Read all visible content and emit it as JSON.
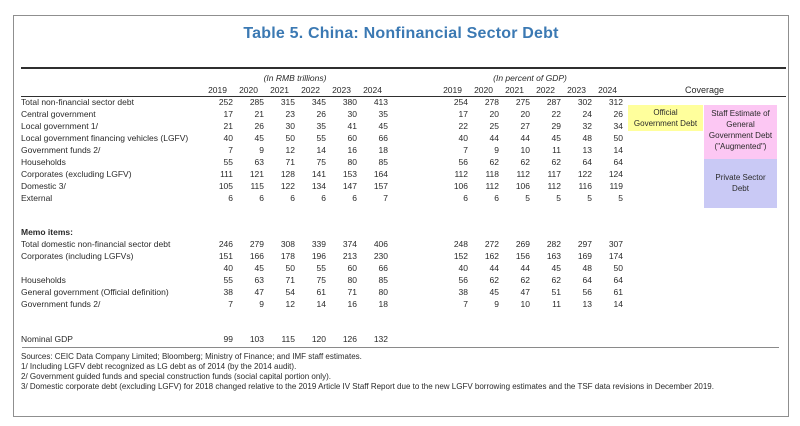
{
  "title": "Table 5. China: Nonfinancial Sector Debt",
  "colors": {
    "title_blue": "#3b79b3",
    "coverage_official": "#ffff9c",
    "coverage_augmented": "#fcc7f3",
    "coverage_private": "#c9c9f5"
  },
  "table": {
    "group_rmb": "(In RMB trillions)",
    "group_gdp": "(In percent of GDP)",
    "coverage_label": "Coverage",
    "years": [
      "2019",
      "2020",
      "2021",
      "2022",
      "2023",
      "2024"
    ],
    "rows": [
      {
        "label": "Total non-financial sector debt",
        "indent": 0,
        "rmb": [
          "252",
          "285",
          "315",
          "345",
          "380",
          "413"
        ],
        "gdp": [
          "254",
          "278",
          "275",
          "287",
          "302",
          "312"
        ]
      },
      {
        "label": "Central government",
        "indent": 1,
        "rmb": [
          "17",
          "21",
          "23",
          "26",
          "30",
          "35"
        ],
        "gdp": [
          "17",
          "20",
          "20",
          "22",
          "24",
          "26"
        ]
      },
      {
        "label": "Local government 1/",
        "indent": 1,
        "rmb": [
          "21",
          "26",
          "30",
          "35",
          "41",
          "45"
        ],
        "gdp": [
          "22",
          "25",
          "27",
          "29",
          "32",
          "34"
        ]
      },
      {
        "label": "Local government financing vehicles (LGFV)",
        "indent": 1,
        "rmb": [
          "40",
          "45",
          "50",
          "55",
          "60",
          "66"
        ],
        "gdp": [
          "40",
          "44",
          "44",
          "45",
          "48",
          "50"
        ]
      },
      {
        "label": "Government funds 2/",
        "indent": 1,
        "rmb": [
          "7",
          "9",
          "12",
          "14",
          "16",
          "18"
        ],
        "gdp": [
          "7",
          "9",
          "10",
          "11",
          "13",
          "14"
        ]
      },
      {
        "label": "Households",
        "indent": 1,
        "rmb": [
          "55",
          "63",
          "71",
          "75",
          "80",
          "85"
        ],
        "gdp": [
          "56",
          "62",
          "62",
          "62",
          "64",
          "64"
        ]
      },
      {
        "label": "Corporates (excluding LGFV)",
        "indent": 1,
        "rmb": [
          "111",
          "121",
          "128",
          "141",
          "153",
          "164"
        ],
        "gdp": [
          "112",
          "118",
          "112",
          "117",
          "122",
          "124"
        ]
      },
      {
        "label": "Domestic 3/",
        "indent": 2,
        "rmb": [
          "105",
          "115",
          "122",
          "134",
          "147",
          "157"
        ],
        "gdp": [
          "106",
          "112",
          "106",
          "112",
          "116",
          "119"
        ]
      },
      {
        "label": "External",
        "indent": 2,
        "rmb": [
          "6",
          "6",
          "6",
          "6",
          "6",
          "7"
        ],
        "gdp": [
          "6",
          "6",
          "5",
          "5",
          "5",
          "5"
        ]
      },
      {
        "type": "spacer",
        "height": 22
      },
      {
        "label": "Memo items:",
        "indent": 0,
        "bold": true,
        "rmb": [
          "",
          "",
          "",
          "",
          "",
          ""
        ],
        "gdp": [
          "",
          "",
          "",
          "",
          "",
          ""
        ]
      },
      {
        "label": "Total domestic non-financial sector debt",
        "indent": 1,
        "rmb": [
          "246",
          "279",
          "308",
          "339",
          "374",
          "406"
        ],
        "gdp": [
          "248",
          "272",
          "269",
          "282",
          "297",
          "307"
        ]
      },
      {
        "label": "Corporates (including LGFVs)",
        "indent": 1,
        "rmb": [
          "151",
          "166",
          "178",
          "196",
          "213",
          "230"
        ],
        "gdp": [
          "152",
          "162",
          "156",
          "163",
          "169",
          "174"
        ]
      },
      {
        "label": "",
        "indent": 1,
        "rmb": [
          "40",
          "45",
          "50",
          "55",
          "60",
          "66"
        ],
        "gdp": [
          "40",
          "44",
          "44",
          "45",
          "48",
          "50"
        ]
      },
      {
        "label": "Households",
        "indent": 1,
        "rmb": [
          "55",
          "63",
          "71",
          "75",
          "80",
          "85"
        ],
        "gdp": [
          "56",
          "62",
          "62",
          "62",
          "64",
          "64"
        ]
      },
      {
        "label": "General government (Official definition)",
        "indent": 1,
        "rmb": [
          "38",
          "47",
          "54",
          "61",
          "71",
          "80"
        ],
        "gdp": [
          "38",
          "45",
          "47",
          "51",
          "56",
          "61"
        ]
      },
      {
        "label": "Government funds 2/",
        "indent": 1,
        "rmb": [
          "7",
          "9",
          "12",
          "14",
          "16",
          "18"
        ],
        "gdp": [
          "7",
          "9",
          "10",
          "11",
          "13",
          "14"
        ]
      },
      {
        "type": "spacer",
        "height": 23
      },
      {
        "label": "Nominal GDP",
        "indent": 0,
        "rmb": [
          "99",
          "103",
          "115",
          "120",
          "126",
          "132"
        ],
        "gdp": [
          "",
          "",
          "",
          "",
          "",
          ""
        ]
      }
    ]
  },
  "coverage_boxes": [
    {
      "id": "official",
      "color": "#ffff9c",
      "lines": [
        "Official",
        "Government Debt"
      ]
    },
    {
      "id": "augmented",
      "color": "#fcc7f3",
      "lines": [
        "Staff Estimate of",
        "General",
        "Government Debt",
        "(\"Augmented\")"
      ]
    },
    {
      "id": "private",
      "color": "#c9c9f5",
      "lines": [
        "Private Sector",
        "Debt"
      ]
    }
  ],
  "footnotes": [
    "Sources: CEIC Data Company Limited; Bloomberg; Ministry of Finance; and IMF staff estimates.",
    "1/ Including LGFV debt recognized as LG debt as of 2014 (by the 2014 audit).",
    "2/ Government guided funds and special construction funds (social capital portion only).",
    "3/ Domestic corporate debt (excluding LGFV) for 2018 changed relative to the 2019 Article IV Staff Report due to the new LGFV borrowing estimates and the TSF data revisions in December 2019."
  ]
}
